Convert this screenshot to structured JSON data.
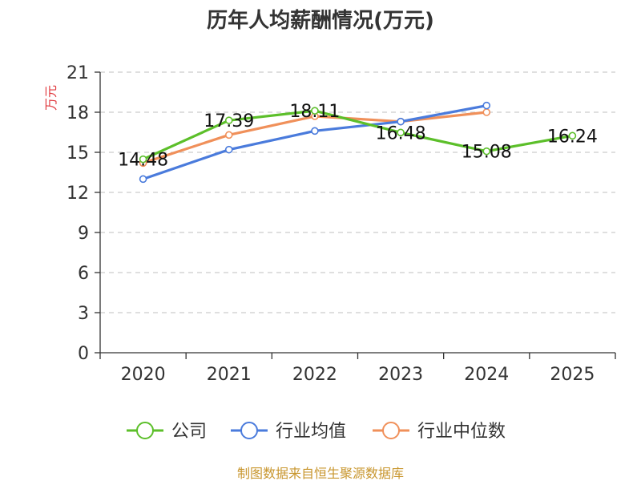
{
  "chart_data": {
    "type": "line",
    "title": "历年人均薪酬情况(万元)",
    "ylabel": "万元",
    "xlabel": "",
    "categories": [
      "2020",
      "2021",
      "2022",
      "2023",
      "2024",
      "2025"
    ],
    "ylim": [
      0,
      21
    ],
    "yticks": [
      0,
      3,
      6,
      9,
      12,
      15,
      18,
      21
    ],
    "grid": "horizontal-dashed",
    "legend_position": "bottom-center",
    "series": [
      {
        "name": "公司",
        "color": "#5cbf2a",
        "values": [
          14.48,
          17.39,
          18.11,
          16.48,
          15.08,
          16.24
        ],
        "labels": [
          "14.48",
          "17.39",
          "18.11",
          "16.48",
          "15.08",
          "16.24"
        ]
      },
      {
        "name": "行业均值",
        "color": "#4a7bdc",
        "values": [
          13.0,
          15.2,
          16.6,
          17.3,
          18.5,
          null
        ]
      },
      {
        "name": "行业中位数",
        "color": "#f0905a",
        "values": [
          14.2,
          16.3,
          17.7,
          17.3,
          18.0,
          null
        ]
      }
    ]
  },
  "source_text": "制图数据来自恒生聚源数据库",
  "colors": {
    "unit": "#e0393e",
    "source": "#c8962e",
    "axis": "#333333",
    "grid": "#cccccc"
  }
}
